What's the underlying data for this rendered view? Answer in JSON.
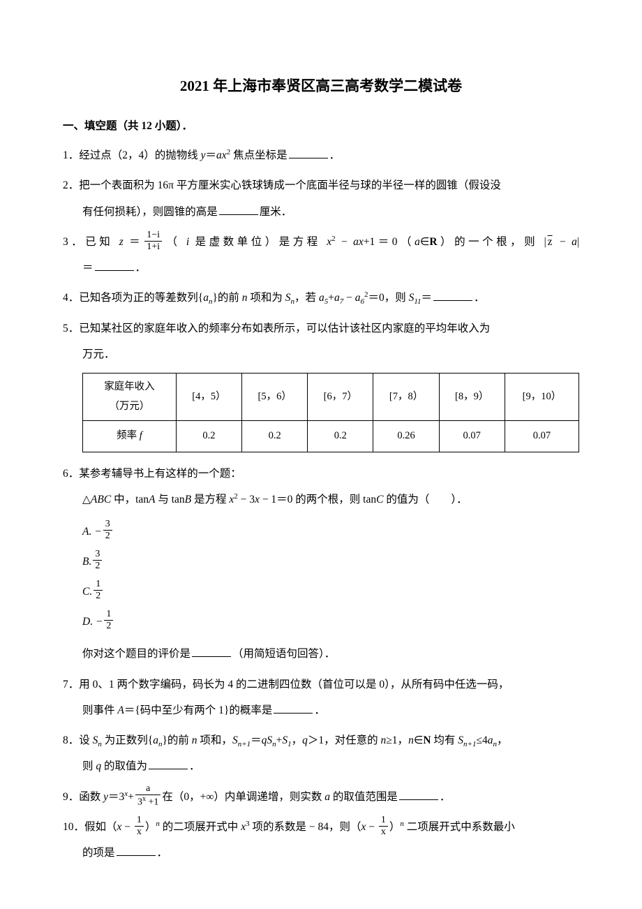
{
  "title": "2021 年上海市奉贤区高三高考数学二模试卷",
  "section_header": "一、填空题（共 12 小题）．",
  "q1": {
    "text_a": "1．经过点（2，4）的抛物线 ",
    "text_b": "＝",
    "text_c": " 焦点坐标是",
    "text_d": "．"
  },
  "q2": {
    "text_a": "2．把一个表面积为 16π 平方厘米实心铁球铸成一个底面半径与球的半径一样的圆锥（假设没",
    "text_b": "有任何损耗），则圆锥的高是",
    "text_c": "厘米．"
  },
  "q3": {
    "text_a": "3．已知 ",
    "text_b": " ＝",
    "frac_num": "1−i",
    "frac_den": "1+i",
    "text_c": "（ ",
    "text_d": " 是虚数单位）是方程 ",
    "text_e": " − ",
    "text_f": "+1＝0（",
    "text_g": "∈",
    "text_h": "）的一个根，则 |",
    "text_i": " − ",
    "text_j": "|",
    "text_k": "＝",
    "text_l": "．"
  },
  "q4": {
    "text_a": "4．已知各项为正的等差数列{",
    "text_b": "}的前 ",
    "text_c": " 项和为 ",
    "text_d": "，若 ",
    "text_e": "+",
    "text_f": " − ",
    "text_g": "＝0，则 ",
    "text_h": "＝",
    "text_i": "．"
  },
  "q5": {
    "text_a": "5．已知某社区的家庭年收入的频率分布如表所示，可以估计该社区内家庭的平均年收入为",
    "text_b": "万元．"
  },
  "table": {
    "header_row": [
      "家庭年收入\n（万元）",
      "[4，5）",
      "[5，6）",
      "[6，7）",
      "[7，8）",
      "[8，9）",
      "[9，10）"
    ],
    "data_row_label": "频率 ",
    "data_row": [
      "0.2",
      "0.2",
      "0.2",
      "0.26",
      "0.07",
      "0.07"
    ]
  },
  "q6": {
    "text_a": "6．某参考辅导书上有这样的一个题：",
    "text_b": "△",
    "text_c": " 中，tan",
    "text_d": " 与 tan",
    "text_e": " 是方程 ",
    "text_f": " − 3",
    "text_g": " − 1＝0 的两个根，则 tan",
    "text_h": " 的值为（　　）．",
    "option_a_label": "A",
    "option_a_num": "3",
    "option_a_den": "2",
    "option_b_label": "B",
    "option_b_num": "3",
    "option_b_den": "2",
    "option_c_label": "C",
    "option_c_num": "1",
    "option_c_den": "2",
    "option_d_label": "D",
    "option_d_num": "1",
    "option_d_den": "2",
    "text_i": "你对这个题目的评价是",
    "text_j": "（用简短语句回答）．"
  },
  "q7": {
    "text_a": "7．用 0、1 两个数字编码，码长为 4 的二进制四位数（首位可以是 0），从所有码中任选一码，",
    "text_b": "则事件 ",
    "text_c": "＝{码中至少有两个 1}的概率是",
    "text_d": "．"
  },
  "q8": {
    "text_a": "8．设 ",
    "text_b": " 为正数列{",
    "text_c": "}的前 ",
    "text_d": " 项和，",
    "text_e": "＝",
    "text_f": "+",
    "text_g": "，",
    "text_h": "＞1，对任意的 ",
    "text_i": "≥1，",
    "text_j": "∈",
    "text_k": " 均有 ",
    "text_l": "≤4",
    "text_m": "，",
    "text_n": "则 ",
    "text_o": " 的取值为",
    "text_p": "．"
  },
  "q9": {
    "text_a": "9．函数 ",
    "text_b": "＝3",
    "text_c": "+",
    "frac_num": "a",
    "frac_den_a": "3",
    "frac_den_b": " +1",
    "text_d": "在（0，+∞）内单调递增，则实数 ",
    "text_e": " 的取值范围是",
    "text_f": "．"
  },
  "q10": {
    "text_a": "10．假如（",
    "text_b": " − ",
    "frac_num": "1",
    "frac_den": "x",
    "text_c": "）",
    "text_d": " 的二项展开式中 ",
    "text_e": " 项的系数是 − 84，则（",
    "text_f": " − ",
    "text_g": "）",
    "text_h": " 二项展开式中系数最小",
    "text_i": "的项是",
    "text_j": "．"
  }
}
